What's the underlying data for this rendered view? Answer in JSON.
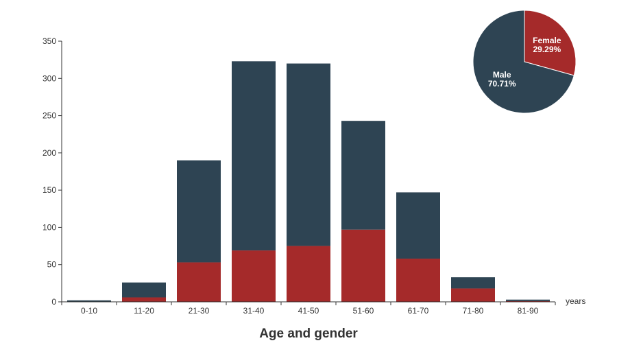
{
  "chart_data": [
    {
      "type": "bar",
      "stacked": true,
      "title": "Age and gender",
      "xlabel": "years",
      "ylabel": "",
      "ylim": [
        0,
        350
      ],
      "yticks": [
        0,
        50,
        100,
        150,
        200,
        250,
        300,
        350
      ],
      "categories": [
        "0-10",
        "11-20",
        "21-30",
        "31-40",
        "41-50",
        "51-60",
        "61-70",
        "71-80",
        "81-90"
      ],
      "series": [
        {
          "name": "Female",
          "color": "#a52a2a",
          "values": [
            0,
            6,
            53,
            69,
            75,
            97,
            58,
            18,
            1
          ]
        },
        {
          "name": "Male",
          "color": "#2e4453",
          "values": [
            2,
            20,
            137,
            254,
            245,
            146,
            89,
            15,
            2
          ]
        }
      ],
      "grid": false,
      "legend": "none"
    },
    {
      "type": "pie",
      "position": "top-right",
      "slices": [
        {
          "name": "Female",
          "percent": "29.29%",
          "value": 29.29,
          "color": "#a52a2a"
        },
        {
          "name": "Male",
          "percent": "70.71%",
          "value": 70.71,
          "color": "#2e4453"
        }
      ]
    }
  ]
}
